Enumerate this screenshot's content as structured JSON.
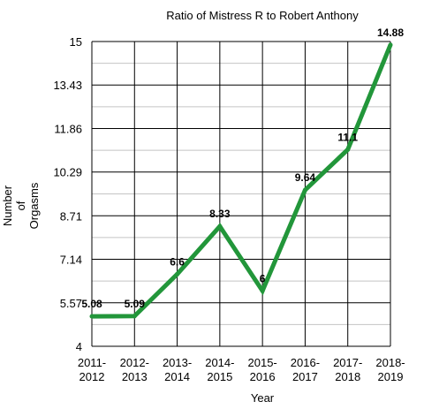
{
  "chart_data": {
    "type": "line",
    "title": "Ratio of Mistress R to Robert Anthony",
    "xlabel": "Year",
    "ylabel": [
      "Number",
      "of",
      "Orgasms"
    ],
    "categories": [
      [
        "2011-",
        "2012"
      ],
      [
        "2012-",
        "2013"
      ],
      [
        "2013-",
        "2014"
      ],
      [
        "2014-",
        "2015"
      ],
      [
        "2015-",
        "2016"
      ],
      [
        "2016-",
        "2017"
      ],
      [
        "2017-",
        "2018"
      ],
      [
        "2018-",
        "2019"
      ]
    ],
    "y_ticks": [
      "4",
      "5.57",
      "7.14",
      "8.71",
      "10.29",
      "11.86",
      "13.43",
      "15"
    ],
    "ylim": [
      4,
      15
    ],
    "grid": true,
    "series": [
      {
        "values": [
          5.08,
          5.09,
          6.6,
          8.33,
          6,
          9.64,
          11.1,
          14.88
        ],
        "labels": [
          "5.08",
          "5.09",
          "6.6",
          "8.33",
          "6",
          "9.64",
          "11.1",
          "14.88"
        ],
        "color": "#22963a"
      }
    ]
  }
}
